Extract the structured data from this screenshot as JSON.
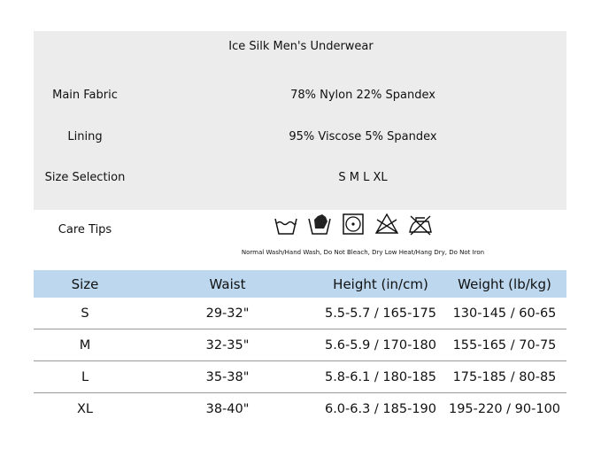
{
  "title": "Ice Silk Men's Underwear",
  "specs": [
    {
      "label": "Main Fabric",
      "value": "78% Nylon 22% Spandex"
    },
    {
      "label": "Lining",
      "value": "95% Viscose 5% Spandex"
    },
    {
      "label": "Size Selection",
      "value": "S M L XL"
    }
  ],
  "care": {
    "label": "Care Tips",
    "icons": [
      "wash-tub-icon",
      "hand-wash-icon",
      "tumble-dry-low-icon",
      "do-not-bleach-icon",
      "do-not-iron-icon"
    ],
    "note": "Normal Wash/Hand Wash, Do Not Bleach, Dry Low Heat/Hang Dry, Do Not Iron"
  },
  "table": {
    "headers": [
      "Size",
      "Waist",
      "Height (in/cm)",
      "Weight (lb/kg)"
    ],
    "header_color": "#bdd7ee",
    "rows": [
      [
        "S",
        "29-32\"",
        "5.5-5.7 / 165-175",
        "130-145 / 60-65"
      ],
      [
        "M",
        "32-35\"",
        "5.6-5.9 / 170-180",
        "155-165 / 70-75"
      ],
      [
        "L",
        "35-38\"",
        "5.8-6.1 / 180-185",
        "175-185 / 80-85"
      ],
      [
        "XL",
        "38-40\"",
        "6.0-6.3 / 185-190",
        "195-220 / 90-100"
      ]
    ]
  }
}
